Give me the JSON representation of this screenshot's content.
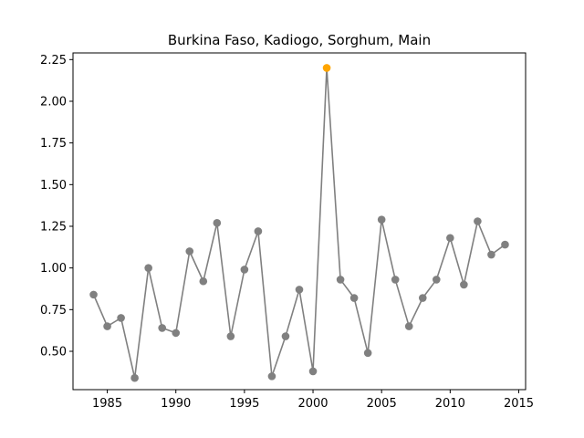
{
  "chart_data": {
    "type": "line",
    "title": "Burkina Faso, Kadiogo, Sorghum, Main",
    "xlabel": "",
    "ylabel": "",
    "xlim": [
      1982.5,
      2015.5
    ],
    "ylim": [
      0.27,
      2.29
    ],
    "x_ticks": [
      1985,
      1990,
      1995,
      2000,
      2005,
      2010,
      2015
    ],
    "y_ticks": [
      0.5,
      0.75,
      1.0,
      1.25,
      1.5,
      1.75,
      2.0,
      2.25
    ],
    "x_tick_labels": [
      "1985",
      "1990",
      "1995",
      "2000",
      "2005",
      "2010",
      "2015"
    ],
    "y_tick_labels": [
      "0.50",
      "0.75",
      "1.00",
      "1.25",
      "1.50",
      "1.75",
      "2.00",
      "2.25"
    ],
    "grid": false,
    "line_color": "#808080",
    "marker_color": "#808080",
    "highlight_color": "#FFA500",
    "highlight_x": 2001,
    "series": [
      {
        "x": [
          1984,
          1985,
          1986,
          1987,
          1988,
          1989,
          1990,
          1991,
          1992,
          1993,
          1994,
          1995,
          1996,
          1997,
          1998,
          1999,
          2000,
          2001,
          2002,
          2003,
          2004,
          2005,
          2006,
          2007,
          2008,
          2009,
          2010,
          2011,
          2012,
          2013,
          2014
        ],
        "y": [
          0.84,
          0.65,
          0.7,
          0.34,
          1.0,
          0.64,
          0.61,
          1.1,
          0.92,
          1.27,
          0.59,
          0.99,
          1.22,
          0.35,
          0.59,
          0.87,
          0.38,
          2.2,
          0.93,
          0.82,
          0.49,
          1.29,
          0.93,
          0.65,
          0.82,
          0.93,
          1.18,
          0.9,
          1.28,
          1.08,
          1.14
        ]
      }
    ]
  }
}
